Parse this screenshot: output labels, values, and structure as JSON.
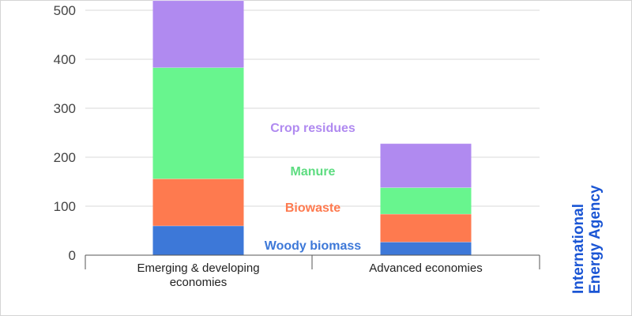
{
  "chart_data": {
    "type": "bar",
    "stacked": true,
    "categories": [
      [
        "Emerging & developing",
        "economies"
      ],
      [
        "Advanced economies"
      ]
    ],
    "series": [
      {
        "name": "Woody biomass",
        "color": "#3d78d8",
        "label_color": "#3d78d8",
        "values": [
          60,
          27
        ]
      },
      {
        "name": "Biowaste",
        "color": "#fe7a4f",
        "label_color": "#fe7a4f",
        "values": [
          96,
          57
        ]
      },
      {
        "name": "Manure",
        "color": "#68f58e",
        "label_color": "#5ddc80",
        "values": [
          227,
          54
        ]
      },
      {
        "name": "Crop residues",
        "color": "#b08af0",
        "label_color": "#b08af0",
        "values": [
          137,
          90
        ]
      }
    ],
    "yticks": [
      0,
      100,
      200,
      300,
      400,
      500
    ],
    "ylim": [
      0,
      520
    ],
    "grid": true,
    "title": "",
    "xlabel": "",
    "ylabel": ""
  },
  "logo": {
    "line1": "International",
    "line2": "Energy Agency",
    "color": "#1a55d4"
  }
}
